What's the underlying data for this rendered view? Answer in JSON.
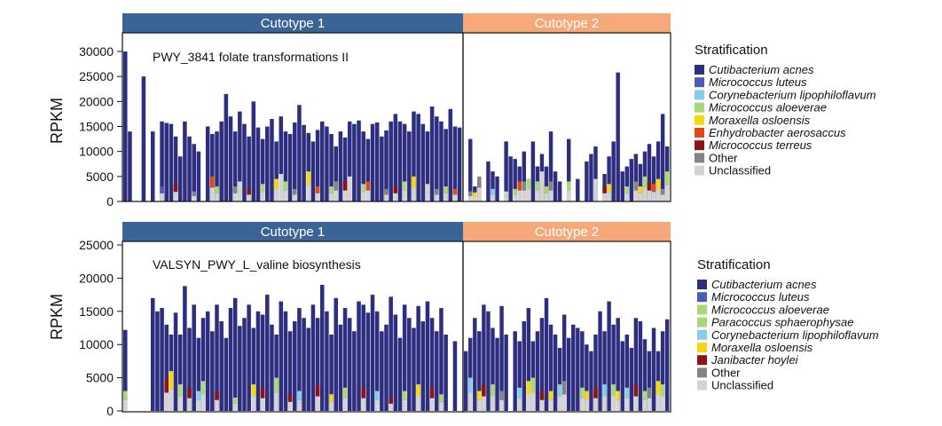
{
  "colors": {
    "cutotype1": "#3a6496",
    "cutotype2": "#f6a87a",
    "Cutibacterium acnes": "#2e2e80",
    "Micrococcus luteus": "#4a5cb4",
    "Corynebacterium lipophiloflavum": "#86cdea",
    "Micrococcus aloeverae": "#a8d878",
    "Moraxella osloensis": "#f4d814",
    "Enhydrobacter aerosaccus": "#e24a14",
    "Micrococcus terreus": "#8c1414",
    "Paracoccus sphaerophysae": "#a8d878",
    "Janibacter hoylei": "#8c1414",
    "Other": "#848484",
    "Unclassified": "#d4d4d4"
  },
  "chart_data": [
    {
      "type": "bar",
      "stacked": true,
      "title": "PWY_3841 folate transformations II",
      "ylabel": "RPKM",
      "ylim": [
        0,
        30000
      ],
      "yticks": [
        "30000",
        "25000",
        "20000",
        "15000",
        "10000",
        "5000",
        "0"
      ],
      "groups": [
        {
          "label": "Cutotype 1",
          "n": 74
        },
        {
          "label": "Cutotype 2",
          "n": 46
        }
      ],
      "legend": {
        "title": "Stratification",
        "items": [
          {
            "label": "Cutibacterium acnes",
            "italic": true
          },
          {
            "label": "Micrococcus luteus",
            "italic": true
          },
          {
            "label": "Corynebacterium lipophiloflavum",
            "italic": true
          },
          {
            "label": "Micrococcus aloeverae",
            "italic": true
          },
          {
            "label": "Moraxella osloensis",
            "italic": true
          },
          {
            "label": "Enhydrobacter aerosaccus",
            "italic": true
          },
          {
            "label": "Micrococcus terreus",
            "italic": true
          },
          {
            "label": "Other",
            "italic": false
          },
          {
            "label": "Unclassified",
            "italic": false
          }
        ]
      },
      "totals": [
        31000,
        14000,
        0,
        0,
        25000,
        0,
        14000,
        0,
        16000,
        15700,
        15500,
        13000,
        9000,
        16000,
        13000,
        11500,
        10000,
        0,
        15000,
        13500,
        14000,
        16000,
        21500,
        17000,
        14000,
        18000,
        15500,
        13000,
        20000,
        14800,
        12500,
        15000,
        16500,
        12000,
        17000,
        14000,
        13500,
        15800,
        19300,
        15300,
        13700,
        12000,
        14300,
        16000,
        15000,
        13500,
        11000,
        14000,
        12800,
        16000,
        15500,
        16200,
        14000,
        12500,
        15500,
        15800,
        13000,
        14200,
        16000,
        17500,
        16000,
        15500,
        14000,
        18000,
        17500,
        15500,
        14000,
        19000,
        17000,
        16000,
        14500,
        18500,
        15000,
        14800,
        0,
        12500,
        3000,
        4000,
        0,
        8000,
        6000,
        5000,
        0,
        12000,
        9000,
        8500,
        7000,
        10000,
        4500,
        12000,
        7000,
        9500,
        7000,
        14000,
        6000,
        4000,
        0,
        12500,
        0,
        4500,
        0,
        8000,
        9500,
        11000,
        0,
        5500,
        9000,
        12000,
        25800,
        6000,
        7000,
        8500,
        9500,
        7500,
        10000,
        11500,
        9000,
        12000,
        17500,
        11000
      ],
      "details": [
        [
          74,
          6,
          7000
        ],
        [
          75,
          7,
          2000
        ],
        [
          76,
          6,
          4500
        ],
        [
          76,
          4,
          1800
        ],
        [
          77,
          7,
          5000
        ],
        [
          80,
          2,
          2500
        ],
        [
          82,
          4,
          3000
        ],
        [
          83,
          8,
          2000
        ],
        [
          85,
          3,
          2500
        ],
        [
          86,
          5,
          4000
        ],
        [
          87,
          7,
          4000
        ],
        [
          88,
          3,
          4500
        ],
        [
          90,
          3,
          4000
        ],
        [
          91,
          8,
          6000
        ],
        [
          92,
          3,
          3000
        ],
        [
          93,
          7,
          4000
        ],
        [
          96,
          8,
          3000
        ],
        [
          97,
          3,
          4000
        ],
        [
          103,
          8,
          4500
        ],
        [
          105,
          6,
          3000
        ],
        [
          106,
          4,
          3500
        ],
        [
          110,
          3,
          3000
        ],
        [
          112,
          7,
          4000
        ],
        [
          113,
          4,
          3000
        ],
        [
          114,
          3,
          5000
        ],
        [
          115,
          6,
          4000
        ],
        [
          116,
          5,
          3500
        ],
        [
          117,
          4,
          4500
        ],
        [
          118,
          7,
          2500
        ],
        [
          119,
          3,
          6000
        ],
        [
          8,
          1,
          3000
        ],
        [
          11,
          6,
          3500
        ],
        [
          15,
          7,
          2000
        ],
        [
          19,
          5,
          5000
        ],
        [
          20,
          3,
          3000
        ],
        [
          24,
          7,
          3000
        ],
        [
          25,
          8,
          4000
        ],
        [
          27,
          6,
          2500
        ],
        [
          30,
          3,
          3500
        ],
        [
          33,
          4,
          4500
        ],
        [
          34,
          8,
          5500
        ],
        [
          35,
          3,
          4000
        ],
        [
          37,
          7,
          2500
        ],
        [
          40,
          4,
          6000
        ],
        [
          42,
          5,
          3000
        ],
        [
          45,
          3,
          3000
        ],
        [
          46,
          7,
          4000
        ],
        [
          48,
          6,
          4000
        ],
        [
          49,
          8,
          5000
        ],
        [
          52,
          3,
          3500
        ],
        [
          53,
          5,
          4000
        ],
        [
          57,
          7,
          2500
        ],
        [
          59,
          6,
          3000
        ],
        [
          61,
          3,
          4000
        ],
        [
          63,
          4,
          5000
        ],
        [
          66,
          8,
          3500
        ],
        [
          68,
          7,
          2500
        ],
        [
          70,
          3,
          3000
        ],
        [
          72,
          5,
          2500
        ]
      ]
    },
    {
      "type": "bar",
      "stacked": true,
      "title": "VALSYN_PWY_L_valine biosynthesis",
      "ylabel": "RPKM",
      "ylim": [
        0,
        25000
      ],
      "yticks": [
        "25000",
        "20000",
        "15000",
        "10000",
        "5000",
        "0"
      ],
      "groups": [
        {
          "label": "Cutotype 1",
          "n": 74
        },
        {
          "label": "Cutotype 2",
          "n": 46
        }
      ],
      "legend": {
        "title": "Stratification",
        "items": [
          {
            "label": "Cutibacterium acnes",
            "italic": true
          },
          {
            "label": "Micrococcus luteus",
            "italic": true
          },
          {
            "label": "Micrococcus aloeverae",
            "italic": true
          },
          {
            "label": "Paracoccus sphaerophysae",
            "italic": true
          },
          {
            "label": "Corynebacterium lipophiloflavum",
            "italic": true
          },
          {
            "label": "Moraxella osloensis",
            "italic": true
          },
          {
            "label": "Janibacter hoylei",
            "italic": true
          },
          {
            "label": "Other",
            "italic": false
          },
          {
            "label": "Unclassified",
            "italic": false
          }
        ]
      },
      "totals": [
        12200,
        0,
        0,
        0,
        0,
        0,
        17000,
        15000,
        15500,
        13000,
        11500,
        14800,
        11500,
        18800,
        12500,
        16000,
        11000,
        14000,
        15000,
        12000,
        16000,
        13500,
        11000,
        15500,
        17000,
        12800,
        14000,
        16000,
        12500,
        15000,
        14500,
        17500,
        13000,
        11500,
        16500,
        15000,
        12000,
        13500,
        15500,
        14000,
        12500,
        16000,
        14000,
        19000,
        15000,
        11500,
        17000,
        13000,
        15500,
        14000,
        12000,
        16500,
        16000,
        14800,
        17500,
        15000,
        12000,
        13000,
        17200,
        14500,
        11000,
        16000,
        14000,
        12500,
        15800,
        13500,
        16500,
        14000,
        12000,
        15500,
        11500,
        0,
        10500,
        0,
        9000,
        11000,
        14000,
        12000,
        16000,
        15000,
        12500,
        11000,
        15800,
        11500,
        0,
        12000,
        10500,
        13500,
        15500,
        10500,
        12000,
        14000,
        17000,
        13000,
        11500,
        9500,
        14500,
        11000,
        13000,
        12500,
        12000,
        10000,
        9000,
        11500,
        15000,
        12000,
        16500,
        13000,
        14000,
        10500,
        11500,
        9500,
        14000,
        13500,
        10800,
        9000,
        12500,
        9000,
        12000,
        13800
      ],
      "details": [
        [
          0,
          3,
          3000
        ],
        [
          9,
          6,
          5000
        ],
        [
          10,
          5,
          6000
        ],
        [
          12,
          3,
          4000
        ],
        [
          14,
          6,
          3500
        ],
        [
          16,
          4,
          3000
        ],
        [
          17,
          3,
          4500
        ],
        [
          20,
          6,
          3000
        ],
        [
          24,
          3,
          2000
        ],
        [
          28,
          5,
          4000
        ],
        [
          30,
          6,
          3500
        ],
        [
          33,
          3,
          5000
        ],
        [
          36,
          6,
          2500
        ],
        [
          38,
          4,
          3000
        ],
        [
          42,
          6,
          4000
        ],
        [
          45,
          5,
          2500
        ],
        [
          48,
          3,
          3500
        ],
        [
          52,
          6,
          3500
        ],
        [
          55,
          4,
          3000
        ],
        [
          58,
          6,
          2000
        ],
        [
          61,
          3,
          3000
        ],
        [
          64,
          5,
          4000
        ],
        [
          67,
          6,
          3500
        ],
        [
          69,
          3,
          2500
        ],
        [
          75,
          4,
          5000
        ],
        [
          77,
          5,
          3000
        ],
        [
          78,
          6,
          4000
        ],
        [
          80,
          3,
          4000
        ],
        [
          82,
          7,
          3000
        ],
        [
          86,
          4,
          3500
        ],
        [
          88,
          5,
          4500
        ],
        [
          89,
          3,
          5000
        ],
        [
          91,
          6,
          3000
        ],
        [
          93,
          5,
          3000
        ],
        [
          95,
          4,
          4000
        ],
        [
          96,
          7,
          4500
        ],
        [
          100,
          3,
          3500
        ],
        [
          101,
          5,
          3000
        ],
        [
          103,
          6,
          3500
        ],
        [
          105,
          4,
          4000
        ],
        [
          107,
          3,
          4000
        ],
        [
          108,
          5,
          3000
        ],
        [
          110,
          4,
          3500
        ],
        [
          112,
          6,
          4000
        ],
        [
          114,
          3,
          3000
        ],
        [
          115,
          7,
          3500
        ],
        [
          117,
          5,
          4500
        ],
        [
          118,
          3,
          4000
        ]
      ]
    }
  ]
}
